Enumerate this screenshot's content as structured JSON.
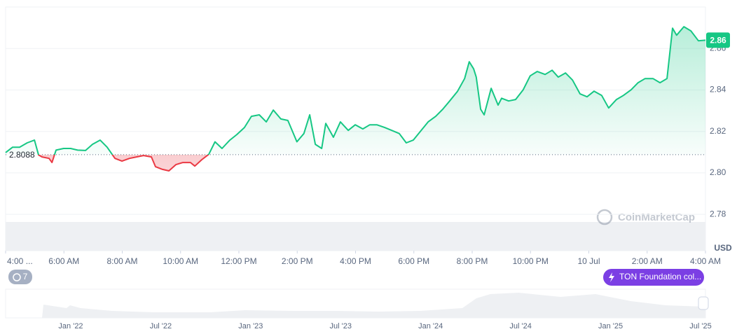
{
  "chart_data": {
    "type": "line",
    "x": [
      0,
      0.24,
      0.48,
      0.74,
      0.99,
      1.13,
      1.25,
      1.49,
      1.59,
      1.73,
      1.99,
      2.23,
      2.47,
      2.74,
      2.98,
      3.24,
      3.48,
      3.75,
      3.99,
      4.25,
      4.49,
      4.73,
      5,
      5.14,
      5.38,
      5.6,
      5.84,
      6.08,
      6.34,
      6.49,
      6.73,
      6.97,
      7.18,
      7.42,
      7.69,
      7.93,
      8.19,
      8.43,
      8.7,
      8.94,
      9.18,
      9.44,
      9.68,
      9.99,
      10.23,
      10.43,
      10.62,
      10.84,
      10.98,
      11.24,
      11.48,
      11.75,
      11.99,
      12.25,
      12.49,
      12.73,
      13,
      13.24,
      13.5,
      13.74,
      13.98,
      14.25,
      14.49,
      14.75,
      14.99,
      15.23,
      15.5,
      15.74,
      15.9,
      16.05,
      16.14,
      16.29,
      16.41,
      16.65,
      16.89,
      17.01,
      17.25,
      17.49,
      17.75,
      17.99,
      18.23,
      18.5,
      18.74,
      18.95,
      19.2,
      19.44,
      19.7,
      19.94,
      20.18,
      20.44,
      20.68,
      20.95,
      21.19,
      21.45,
      21.69,
      21.93,
      22.2,
      22.44,
      22.68,
      22.87,
      23.01,
      23.26,
      23.5,
      23.76,
      24
    ],
    "series": [
      {
        "name": "TON",
        "color": "#16c784",
        "below_color": "#ea3943",
        "values": [
          2.8098,
          2.8124,
          2.8124,
          2.8145,
          2.8158,
          2.8087,
          2.8077,
          2.807,
          2.805,
          2.811,
          2.8118,
          2.8118,
          2.811,
          2.8108,
          2.8138,
          2.8158,
          2.8124,
          2.807,
          2.8057,
          2.807,
          2.8077,
          2.8084,
          2.8077,
          2.803,
          2.8017,
          2.801,
          2.804,
          2.805,
          2.805,
          2.8033,
          2.8064,
          2.809,
          2.815,
          2.8118,
          2.8158,
          2.8185,
          2.8219,
          2.8273,
          2.828,
          2.8246,
          2.8303,
          2.826,
          2.8253,
          2.815,
          2.819,
          2.828,
          2.8138,
          2.8118,
          2.8239,
          2.8172,
          2.8246,
          2.8205,
          2.8232,
          2.8212,
          2.8232,
          2.8232,
          2.8219,
          2.8205,
          2.819,
          2.8145,
          2.8158,
          2.8205,
          2.8246,
          2.8273,
          2.8307,
          2.8347,
          2.8394,
          2.8455,
          2.8536,
          2.8502,
          2.8462,
          2.8307,
          2.828,
          2.8408,
          2.8327,
          2.836,
          2.8347,
          2.8354,
          2.8401,
          2.8468,
          2.8489,
          2.8475,
          2.8495,
          2.8462,
          2.8482,
          2.8448,
          2.8381,
          2.8367,
          2.8394,
          2.8374,
          2.8313,
          2.8354,
          2.8374,
          2.8401,
          2.8435,
          2.8455,
          2.8455,
          2.8435,
          2.8455,
          2.8698,
          2.8664,
          2.8705,
          2.8685,
          2.8637,
          2.864
        ]
      }
    ],
    "baseline": 2.8088,
    "price_label": "2.86",
    "ylim": [
      2.7625,
      2.88
    ],
    "yticks": [
      2.78,
      {
        "value": 2.8,
        "label": "2.80"
      },
      2.82,
      2.84,
      2.86
    ],
    "xlim": [
      0,
      24
    ],
    "xticks": [
      {
        "value": 0,
        "label": "4:00 ..."
      },
      {
        "value": 2,
        "label": "6:00 AM"
      },
      {
        "value": 4,
        "label": "8:00 AM"
      },
      {
        "value": 6,
        "label": "10:00 AM"
      },
      {
        "value": 8,
        "label": "12:00 PM"
      },
      {
        "value": 10,
        "label": "2:00 PM"
      },
      {
        "value": 12,
        "label": "4:00 PM"
      },
      {
        "value": 14,
        "label": "6:00 PM"
      },
      {
        "value": 16,
        "label": "8:00 PM"
      },
      {
        "value": 18,
        "label": "10:00 PM"
      },
      {
        "value": 20,
        "label": "10 Jul"
      },
      {
        "value": 22,
        "label": "2:00 AM"
      },
      {
        "value": 24,
        "label": "4:00 AM"
      }
    ],
    "grid": true,
    "currency": "USD",
    "watermark": "CoinMarketCap",
    "events_badge": "7",
    "event_label": "TON Foundation col...",
    "navigator_labels": [
      "Jan '22",
      "Jul '22",
      "Jan '23",
      "Jul '23",
      "Jan '24",
      "Jul '24",
      "Jan '25",
      "Jul '25"
    ]
  }
}
